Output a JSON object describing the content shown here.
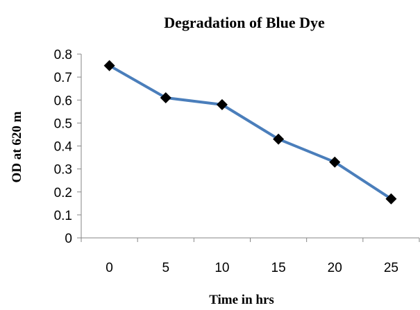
{
  "chart_data": {
    "type": "line",
    "title": "Degradation of Blue Dye",
    "xlabel": "Time in hrs",
    "ylabel": "OD  at 620 m",
    "categories": [
      "0",
      "5",
      "10",
      "15",
      "20",
      "25"
    ],
    "series": [
      {
        "values": [
          0.75,
          0.61,
          0.58,
          0.43,
          0.33,
          0.17
        ]
      }
    ],
    "y_ticks": [
      "0",
      "0.1",
      "0.2",
      "0.3",
      "0.4",
      "0.5",
      "0.6",
      "0.7",
      "0.8"
    ],
    "ylim": [
      0,
      0.8
    ],
    "grid": false,
    "legend": "none",
    "colors": {
      "line": "#4a7ebb",
      "marker": "#000000",
      "axis": "#868686"
    },
    "marker_shape": "diamond"
  }
}
